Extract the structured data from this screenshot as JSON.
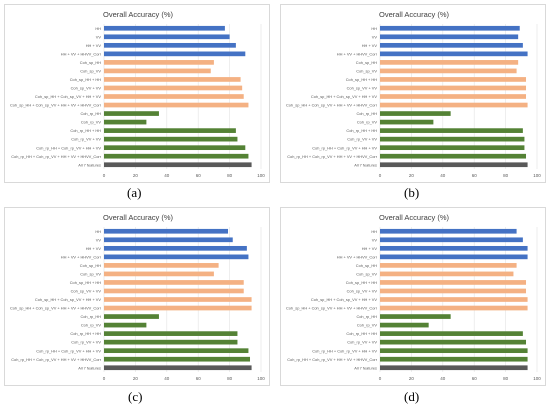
{
  "colors": {
    "blue": "#4472c4",
    "salmon": "#f4b183",
    "green": "#548235",
    "gray": "#595959",
    "grid": "#e3e3e3",
    "text": "#595959"
  },
  "categories": [
    "HH",
    "VV",
    "HH + VV",
    "HH + VV + HHVV_Corr",
    "Coh_sp_HH",
    "Coh_sp_VV",
    "Coh_sp_HH + HH",
    "Coh_sp_VV + VV",
    "Coh_sp_HH + Coh_sp_VV + HH + VV",
    "Coh_sp_HH + Coh_sp_VV + HH + VV + HHVV_Corr",
    "Coh_rp_HH",
    "Coh_rp_VV",
    "Coh_rp_HH + HH",
    "Coh_rp_VV + VV",
    "Coh_rp_HH + Coh_rp_VV + HH + VV",
    "Coh_rp_HH + Coh_rp_VV + HH + VV + HHVV_Corr",
    "All 7 features"
  ],
  "category_groups": [
    "blue",
    "blue",
    "blue",
    "blue",
    "salmon",
    "salmon",
    "salmon",
    "salmon",
    "salmon",
    "salmon",
    "green",
    "green",
    "green",
    "green",
    "green",
    "green",
    "gray"
  ],
  "chart_data": [
    {
      "type": "bar",
      "orientation": "horizontal",
      "title": "Overall Accuracy (%)",
      "panel_label": "(a)",
      "xlim": [
        0,
        100
      ],
      "xticks": [
        "0",
        "20",
        "40",
        "60",
        "80",
        "100"
      ],
      "grid": true,
      "values": [
        77,
        80,
        84,
        90,
        70,
        68,
        87,
        88,
        89,
        92,
        35,
        27,
        84,
        85,
        90,
        92,
        94
      ]
    },
    {
      "type": "bar",
      "orientation": "horizontal",
      "title": "Overall Accuracy (%)",
      "panel_label": "(b)",
      "xlim": [
        0,
        100
      ],
      "xticks": [
        "0",
        "20",
        "40",
        "60",
        "80",
        "100"
      ],
      "grid": true,
      "values": [
        89,
        88,
        91,
        94,
        88,
        87,
        93,
        93,
        93,
        94,
        45,
        34,
        91,
        92,
        92,
        93,
        94
      ]
    },
    {
      "type": "bar",
      "orientation": "horizontal",
      "title": "Overall Accuracy (%)",
      "panel_label": "(c)",
      "xlim": [
        0,
        100
      ],
      "xticks": [
        "0",
        "20",
        "40",
        "60",
        "80",
        "100"
      ],
      "grid": true,
      "values": [
        79,
        82,
        91,
        92,
        73,
        70,
        89,
        89,
        94,
        94,
        35,
        27,
        85,
        85,
        92,
        93,
        94
      ]
    },
    {
      "type": "bar",
      "orientation": "horizontal",
      "title": "Overall Accuracy (%)",
      "panel_label": "(d)",
      "xlim": [
        0,
        100
      ],
      "xticks": [
        "0",
        "20",
        "40",
        "60",
        "80",
        "100"
      ],
      "grid": true,
      "values": [
        87,
        91,
        94,
        94,
        87,
        85,
        93,
        93,
        94,
        94,
        45,
        31,
        91,
        93,
        94,
        94,
        94
      ]
    }
  ]
}
